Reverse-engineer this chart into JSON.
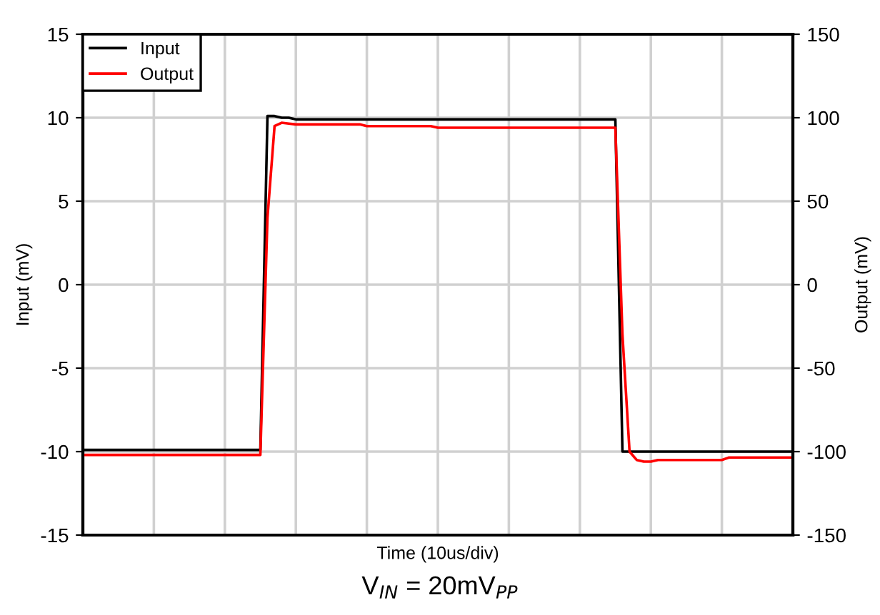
{
  "chart_data": {
    "type": "line",
    "xlabel": "Time (10us/div)",
    "ylabel": "Input (mV)",
    "y2label": "Output (mV)",
    "annotations": [
      "V$_{IN}$ = 20mV$_{PP}$"
    ],
    "categories": [
      null,
      null,
      null,
      null,
      null,
      null,
      null,
      null,
      null,
      null,
      null,
      null,
      null,
      null,
      null,
      null,
      null,
      null,
      null,
      null,
      null,
      null,
      null,
      null,
      null,
      null,
      null,
      null,
      null,
      null,
      null,
      null,
      null,
      null,
      null,
      null,
      null,
      null,
      null,
      null,
      null,
      null,
      null,
      null,
      null,
      null,
      null,
      null,
      null,
      null,
      null,
      null,
      null,
      null,
      null,
      null,
      null,
      null,
      null,
      null,
      null,
      null,
      null,
      null,
      null,
      null,
      null,
      null,
      null,
      null,
      null,
      null,
      null,
      null,
      null,
      null,
      null,
      null,
      null,
      null,
      null,
      null,
      null,
      null,
      null,
      null,
      null,
      null,
      null,
      null,
      null,
      null,
      null,
      null,
      null,
      null,
      null,
      null,
      null,
      null,
      null
    ],
    "ylim": [
      -15,
      15
    ],
    "yticks": [
      -15,
      -10,
      -5,
      0,
      5,
      10,
      15
    ],
    "y2lim": [
      -150,
      150
    ],
    "y2ticks": [
      -150,
      -100,
      -50,
      0,
      50,
      100,
      150
    ],
    "grid": true,
    "legend": "top left",
    "line_style": "solid",
    "series": [
      {
        "name": "Input",
        "color": "#000000",
        "values": [
          -9.9,
          -9.9,
          -9.9,
          -9.9,
          -9.9,
          -9.9,
          -9.9,
          -9.9,
          -9.9,
          -9.9,
          -9.9,
          -9.9,
          -9.9,
          -9.9,
          -9.9,
          -9.9,
          -9.9,
          -9.9,
          -9.9,
          -9.9,
          -9.9,
          -9.9,
          -9.9,
          -9.9,
          -9.9,
          -9.9,
          10.1,
          10.1,
          10.0,
          10.0,
          9.9,
          9.9,
          9.9,
          9.9,
          9.9,
          9.9,
          9.9,
          9.9,
          9.9,
          9.9,
          9.9,
          9.9,
          9.9,
          9.9,
          9.9,
          9.9,
          9.9,
          9.9,
          9.9,
          9.9,
          9.9,
          9.9,
          9.9,
          9.9,
          9.9,
          9.9,
          9.9,
          9.9,
          9.9,
          9.9,
          9.9,
          9.9,
          9.9,
          9.9,
          9.9,
          9.9,
          9.9,
          9.9,
          9.9,
          9.9,
          9.9,
          9.9,
          9.9,
          9.9,
          9.9,
          9.9,
          -10.0,
          -10.0,
          -10.0,
          -10.0,
          -10.0,
          -10.0,
          -10.0,
          -10.0,
          -10.0,
          -10.0,
          -10.0,
          -10.0,
          -10.0,
          -10.0,
          -10.0,
          -10.0,
          -10.0,
          -10.0,
          -10.0,
          -10.0,
          -10.0,
          -10.0,
          -10.0,
          -10.0,
          -10.0
        ]
      },
      {
        "name": "Output",
        "color": "#ff0000",
        "axis": "y2",
        "values": [
          -102,
          -102,
          -102,
          -102,
          -102,
          -102,
          -102,
          -102,
          -102,
          -102,
          -102,
          -102,
          -102,
          -102,
          -102,
          -102,
          -102,
          -102,
          -102,
          -102,
          -102,
          -102,
          -102,
          -102,
          -102,
          -102,
          40,
          95,
          97,
          96.5,
          96,
          96,
          96,
          96,
          96,
          96,
          96,
          96,
          96,
          96,
          95,
          95,
          95,
          95,
          95,
          95,
          95,
          95,
          95,
          95,
          94,
          94,
          94,
          94,
          94,
          94,
          94,
          94,
          94,
          94,
          94,
          94,
          94,
          94,
          94,
          94,
          94,
          94,
          94,
          94,
          94,
          94,
          94,
          94,
          94,
          94,
          -30,
          -100,
          -105,
          -106,
          -106,
          -105,
          -105,
          -105,
          -105,
          -105,
          -105,
          -105,
          -105,
          -105,
          -105,
          -103.5,
          -103.5,
          -103.5,
          -103.5,
          -103.5,
          -103.5,
          -103.5,
          -103.5,
          -103.5,
          -103.5
        ]
      }
    ]
  }
}
